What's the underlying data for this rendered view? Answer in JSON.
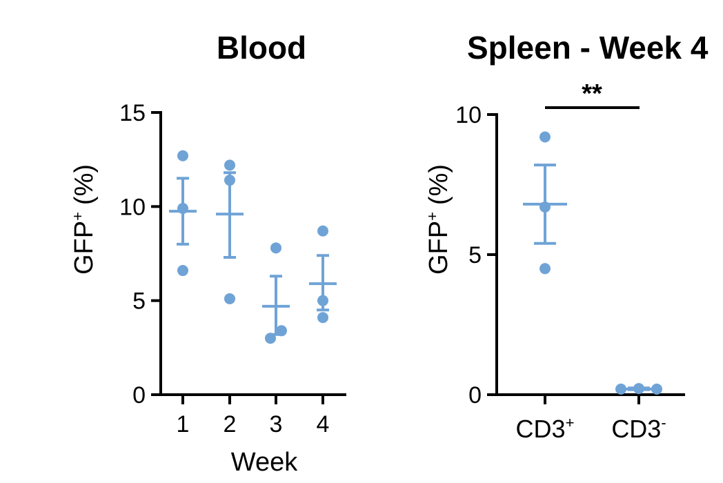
{
  "accent_color": "#6fa3d6",
  "chart_data": [
    {
      "type": "scatter",
      "title": "Blood",
      "xlabel": "Week",
      "ylabel_main": "GFP",
      "ylabel_sup": "+",
      "ylabel_unit": "(%)",
      "ylim": [
        0,
        15
      ],
      "yticks": [
        0,
        5,
        10,
        15
      ],
      "categories": [
        "1",
        "2",
        "3",
        "4"
      ],
      "groups": [
        {
          "category": "1",
          "points": [
            12.7,
            9.9,
            6.6
          ],
          "mean": 9.75,
          "sem_low": 8.0,
          "sem_high": 11.5
        },
        {
          "category": "2",
          "points": [
            12.2,
            11.4,
            5.1
          ],
          "mean": 9.6,
          "sem_low": 7.3,
          "sem_high": 11.8
        },
        {
          "category": "3",
          "points": [
            7.8,
            3.0,
            3.4
          ],
          "mean": 4.7,
          "sem_low": 3.2,
          "sem_high": 6.3
        },
        {
          "category": "4",
          "points": [
            8.7,
            5.0,
            4.1
          ],
          "mean": 5.9,
          "sem_low": 4.5,
          "sem_high": 7.4
        }
      ]
    },
    {
      "type": "scatter",
      "title": "Spleen - Week 4",
      "xlabel": "",
      "ylabel_main": "GFP",
      "ylabel_sup": "+",
      "ylabel_unit": "(%)",
      "ylim": [
        0,
        10
      ],
      "yticks": [
        0,
        5,
        10
      ],
      "categories": [
        {
          "main": "CD3",
          "sup": "+"
        },
        {
          "main": "CD3",
          "sup": "-"
        }
      ],
      "groups": [
        {
          "category": "CD3+",
          "points": [
            9.2,
            6.7,
            4.5
          ],
          "mean": 6.8,
          "sem_low": 5.4,
          "sem_high": 8.2
        },
        {
          "category": "CD3-",
          "points": [
            0.2,
            0.22,
            0.2
          ],
          "mean": 0.2,
          "sem_low": 0.18,
          "sem_high": 0.24
        }
      ],
      "significance": {
        "label": "**",
        "between": [
          "CD3+",
          "CD3-"
        ]
      }
    }
  ]
}
